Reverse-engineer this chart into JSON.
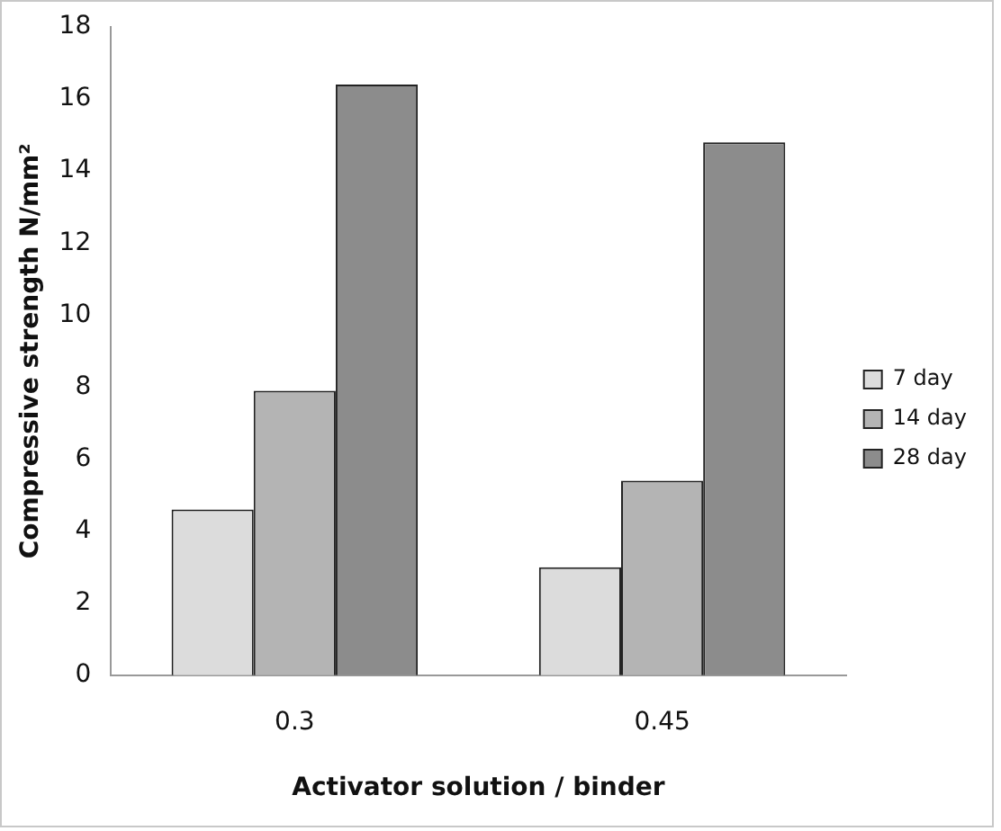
{
  "chart_data": {
    "type": "bar",
    "xlabel": "Activator solution / binder",
    "ylabel": "Compressive strength N/mm²",
    "categories": [
      "0.3",
      "0.45"
    ],
    "series": [
      {
        "name": "7 day",
        "color": "#dcdcdc",
        "values": [
          4.6,
          3.0
        ]
      },
      {
        "name": "14 day",
        "color": "#b4b4b4",
        "values": [
          7.9,
          5.4
        ]
      },
      {
        "name": "28 day",
        "color": "#8c8c8c",
        "values": [
          16.4,
          14.8
        ]
      }
    ],
    "ylim": [
      0,
      18
    ],
    "yticks": [
      0,
      2,
      4,
      6,
      8,
      10,
      12,
      14,
      16,
      18
    ],
    "grid": false,
    "legend": "right"
  }
}
